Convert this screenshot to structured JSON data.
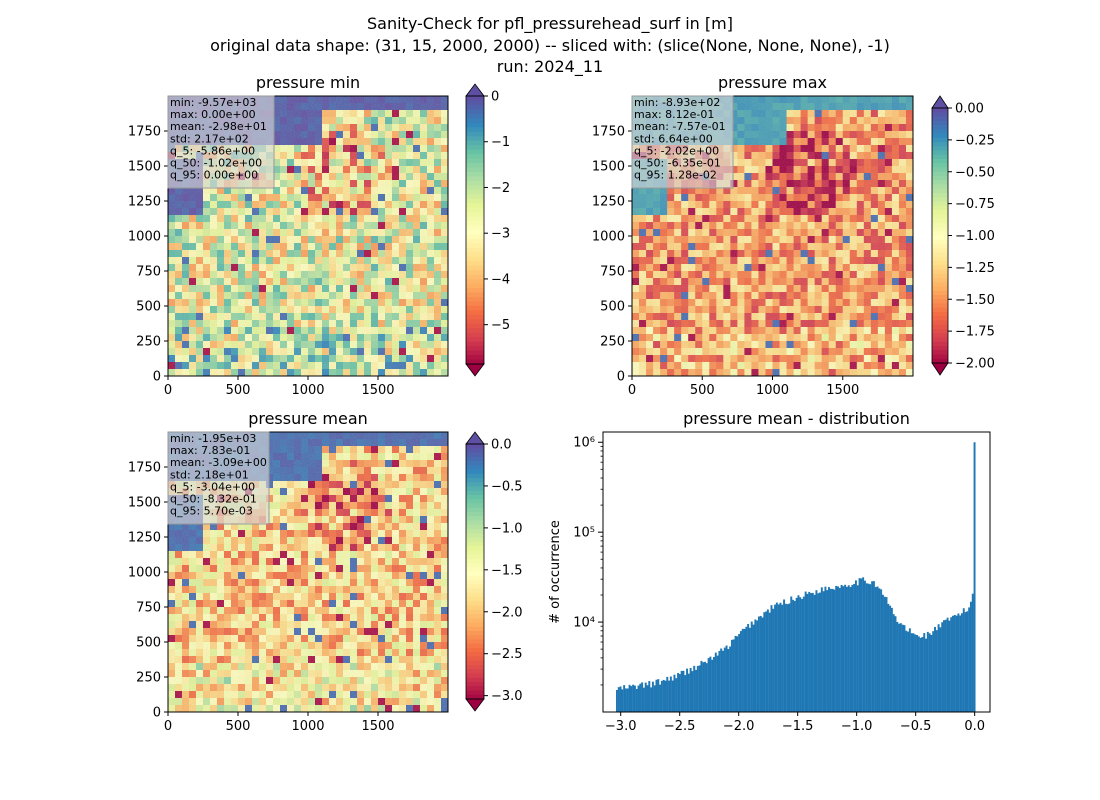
{
  "suptitle": {
    "line1": "Sanity-Check for pfl_pressurehead_surf in [m]",
    "line2": "original data shape: (31, 15, 2000, 2000) -- sliced with: (slice(None, None, None), -1)",
    "line3": "run: 2024_11"
  },
  "colors": {
    "spectral": [
      "#9e0142",
      "#d53e4f",
      "#f46d43",
      "#fdae61",
      "#fee08b",
      "#ffffbf",
      "#e6f598",
      "#abdda4",
      "#66c2a5",
      "#3288bd",
      "#5e4fa2"
    ],
    "histogram": "#1f77b4"
  },
  "chart_data": [
    {
      "type": "heatmap",
      "title": "pressure min",
      "xticks": [
        "0",
        "500",
        "1000",
        "1500"
      ],
      "yticks": [
        "0",
        "250",
        "500",
        "750",
        "1000",
        "1250",
        "1500",
        "1750"
      ],
      "xlim": [
        0,
        2000
      ],
      "ylim": [
        0,
        2000
      ],
      "colormap": "Spectral",
      "colorbar": {
        "range": [
          -5.86,
          0.0
        ],
        "ticks": [
          "0",
          "−1",
          "−2",
          "−3",
          "−4",
          "−5"
        ],
        "extend": "both"
      },
      "stats": [
        "min: -9.57e+03",
        "max: 0.00e+00",
        "mean: -2.98e+01",
        "std: 2.17e+02",
        "q_5: -5.86e+00",
        "q_50: -1.02e+00",
        "q_95: 0.00e+00"
      ]
    },
    {
      "type": "heatmap",
      "title": "pressure max",
      "xticks": [
        "0",
        "500",
        "1000",
        "1500"
      ],
      "yticks": [
        "0",
        "250",
        "500",
        "750",
        "1000",
        "1250",
        "1500",
        "1750"
      ],
      "xlim": [
        0,
        2000
      ],
      "ylim": [
        0,
        2000
      ],
      "colormap": "Spectral",
      "colorbar": {
        "range": [
          -2.0,
          0.0
        ],
        "ticks": [
          "0.00",
          "−0.25",
          "−0.50",
          "−0.75",
          "−1.00",
          "−1.25",
          "−1.50",
          "−1.75",
          "−2.00"
        ],
        "extend": "both"
      },
      "stats": [
        "min: -8.93e+02",
        "max: 8.12e-01",
        "mean: -7.57e-01",
        "std: 6.64e+00",
        "q_5: -2.02e+00",
        "q_50: -6.35e-01",
        "q_95: 1.28e-02"
      ]
    },
    {
      "type": "heatmap",
      "title": "pressure mean",
      "xticks": [
        "0",
        "500",
        "1000",
        "1500"
      ],
      "yticks": [
        "0",
        "250",
        "500",
        "750",
        "1000",
        "1250",
        "1500",
        "1750"
      ],
      "xlim": [
        0,
        2000
      ],
      "ylim": [
        0,
        2000
      ],
      "colormap": "Spectral",
      "colorbar": {
        "range": [
          -3.04,
          0.0
        ],
        "ticks": [
          "0.0",
          "−0.5",
          "−1.0",
          "−1.5",
          "−2.0",
          "−2.5",
          "−3.0"
        ],
        "extend": "both"
      },
      "stats": [
        "min: -1.95e+03",
        "max: 7.83e-01",
        "mean: -3.09e+00",
        "std: 2.18e+01",
        "q_5: -3.04e+00",
        "q_50: -8.32e-01",
        "q_95: 5.70e-03"
      ]
    },
    {
      "type": "bar",
      "title": "pressure mean - distribution",
      "ylabel": "# of occurrence",
      "xlabel": "",
      "yscale": "log",
      "xlim": [
        -3.15,
        0.13
      ],
      "ylim": [
        1000,
        1300000
      ],
      "xticks": [
        -3.0,
        -2.5,
        -2.0,
        -1.5,
        -1.0,
        -0.5,
        0.0
      ],
      "xtick_labels": [
        "−3.0",
        "−2.5",
        "−2.0",
        "−1.5",
        "−1.0",
        "−0.5",
        "0.0"
      ],
      "yticks": [
        10000,
        100000,
        1000000
      ],
      "ytick_labels": [
        "10⁴",
        "10⁵",
        "10⁶"
      ],
      "bin_start": -3.04,
      "bin_end": 0.006,
      "bins": 200,
      "profile_x": [
        -3.04,
        -2.9,
        -2.7,
        -2.5,
        -2.3,
        -2.1,
        -2.0,
        -1.9,
        -1.7,
        -1.5,
        -1.3,
        -1.1,
        -0.95,
        -0.85,
        -0.75,
        -0.65,
        -0.5,
        -0.4,
        -0.3,
        -0.15,
        -0.05,
        -0.01
      ],
      "profile_y": [
        1800,
        1900,
        2100,
        2600,
        3500,
        5200,
        7200,
        9500,
        15000,
        19000,
        23000,
        26000,
        29000,
        28000,
        18000,
        10000,
        7000,
        7200,
        9000,
        12000,
        14000,
        22000
      ],
      "spike_near_zero": 1000000
    }
  ]
}
